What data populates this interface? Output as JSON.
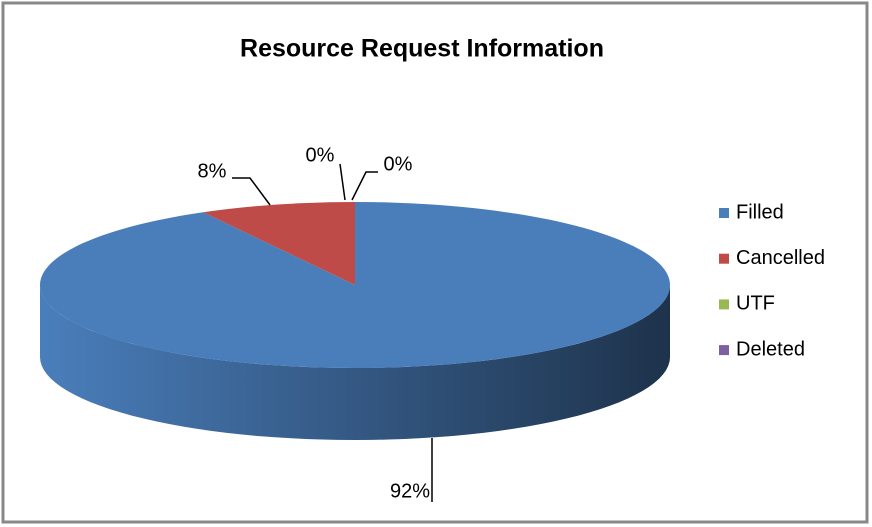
{
  "chart_data": {
    "type": "pie3d",
    "title": "Resource Request Information",
    "categories": [
      "Filled",
      "Cancelled",
      "UTF",
      "Deleted"
    ],
    "values": [
      92,
      8,
      0,
      0
    ],
    "value_labels": [
      "92%",
      "8%",
      "0%",
      "0%"
    ],
    "colors": [
      "#4a7ebb",
      "#be4b48",
      "#98b954",
      "#7d60a0"
    ],
    "legend": "right"
  }
}
